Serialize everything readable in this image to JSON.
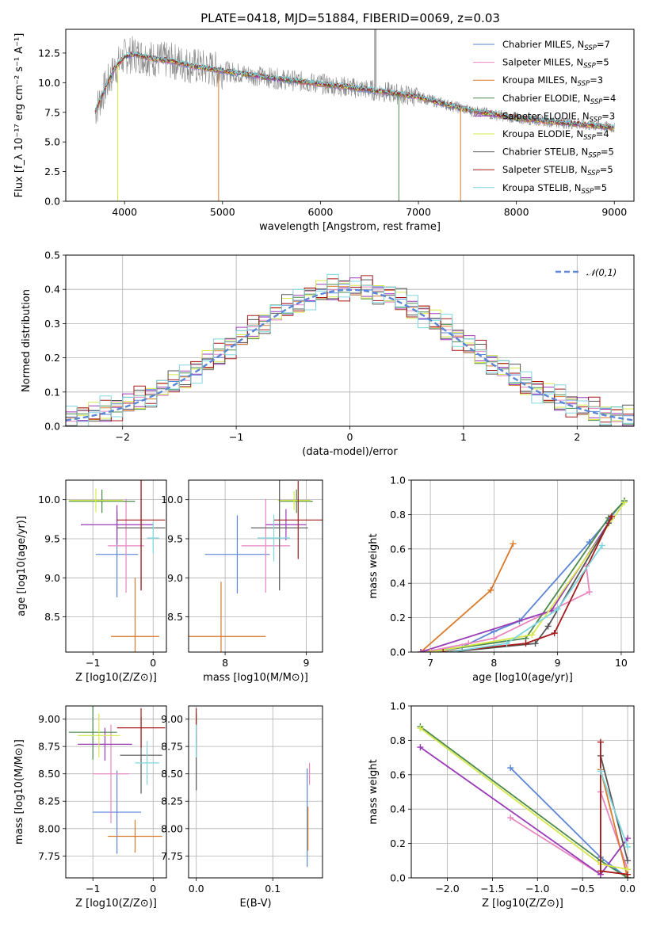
{
  "figure": {
    "title": "PLATE=0418, MJD=51884, FIBERID=0069, z=0.03"
  },
  "colors": {
    "c0": "#5b86d6",
    "c1": "#e886c0",
    "c2": "#d97a2a",
    "c3": "#4c8a4c",
    "c4": "#9a3ab8",
    "c5": "#d6e84c",
    "c6": "#555555",
    "c7": "#a51b1b",
    "c8": "#7fd6e0",
    "data": "#888888",
    "normal": "#5b86d6",
    "grid": "#b0b0b0"
  },
  "chart_data": [
    {
      "type": "line",
      "panel": "spectrum",
      "title": "PLATE=0418, MJD=51884, FIBERID=0069, z=0.03",
      "xlabel": "wavelength [Angstrom, rest frame]",
      "ylabel": "Flux [f_λ 10⁻¹⁷ erg cm⁻² s⁻¹ A⁻¹]",
      "xlim": [
        3400,
        9200
      ],
      "ylim": [
        0,
        14.5
      ],
      "xticks": [
        "4000",
        "5000",
        "6000",
        "7000",
        "8000",
        "9000"
      ],
      "yticks": [
        "0.0",
        "2.5",
        "5.0",
        "7.5",
        "10.0",
        "12.5"
      ],
      "grid": false,
      "legend_position": "top-right",
      "data_wavelength_range": [
        3700,
        9000
      ],
      "model_wavelength_range": [
        3700,
        9000
      ],
      "continuum": [
        {
          "x": 3700,
          "y": 7.6
        },
        {
          "x": 3800,
          "y": 9.5
        },
        {
          "x": 3900,
          "y": 11.2
        },
        {
          "x": 4000,
          "y": 12.2
        },
        {
          "x": 4100,
          "y": 12.4
        },
        {
          "x": 4300,
          "y": 12.0
        },
        {
          "x": 4500,
          "y": 11.8
        },
        {
          "x": 4700,
          "y": 11.4
        },
        {
          "x": 5000,
          "y": 11.0
        },
        {
          "x": 5500,
          "y": 10.4
        },
        {
          "x": 6000,
          "y": 9.9
        },
        {
          "x": 6500,
          "y": 9.4
        },
        {
          "x": 7000,
          "y": 8.8
        },
        {
          "x": 7500,
          "y": 7.7
        },
        {
          "x": 8000,
          "y": 7.0
        },
        {
          "x": 8500,
          "y": 6.6
        },
        {
          "x": 9000,
          "y": 6.2
        }
      ],
      "series": [
        {
          "name": "Chabrier MILES",
          "n_ssp": "7"
        },
        {
          "name": "Salpeter MILES",
          "n_ssp": "5"
        },
        {
          "name": "Kroupa MILES",
          "n_ssp": "3"
        },
        {
          "name": "Chabrier ELODIE",
          "n_ssp": "4"
        },
        {
          "name": "Salpeter ELODIE",
          "n_ssp": "3"
        },
        {
          "name": "Kroupa ELODIE",
          "n_ssp": "4"
        },
        {
          "name": "Chabrier STELIB",
          "n_ssp": "5"
        },
        {
          "name": "Salpeter STELIB",
          "n_ssp": "5"
        },
        {
          "name": "Kroupa STELIB",
          "n_ssp": "5"
        }
      ]
    },
    {
      "type": "line",
      "panel": "residuals",
      "xlabel": "(data-model)/error",
      "ylabel": "Normed distribution",
      "xlim": [
        -2.5,
        2.5
      ],
      "ylim": [
        0,
        0.5
      ],
      "xticks": [
        "−2",
        "−1",
        "0",
        "1",
        "2"
      ],
      "yticks": [
        "0.0",
        "0.1",
        "0.2",
        "0.3",
        "0.4",
        "0.5"
      ],
      "grid": true,
      "legend_position": "top-right",
      "reference_curve": {
        "name": "𝒩(0,1)",
        "mean": 0,
        "sigma": 1
      },
      "bin_width": 0.1,
      "histogram_jitter": [
        0.012,
        -0.018,
        0.022,
        -0.008,
        0.028,
        -0.025,
        0.006,
        0.035,
        -0.015,
        0.018
      ]
    },
    {
      "type": "scatter",
      "panel": "age-vs-Z",
      "xlabel": "Z [log10(Z/Z⊙)]",
      "ylabel": "age [log10(age/yr)]",
      "xlim": [
        -1.45,
        0.22
      ],
      "ylim": [
        8.05,
        10.25
      ],
      "xticks": [
        "−1",
        "0"
      ],
      "yticks": [
        "8.5",
        "9.0",
        "9.5",
        "10.0"
      ],
      "grid": true,
      "points": [
        {
          "series": 0,
          "x": -0.6,
          "y": 9.3,
          "xerr": 0.35,
          "yerr": 0.55
        },
        {
          "series": 1,
          "x": -0.45,
          "y": 9.41,
          "xerr": 0.3,
          "yerr": 0.6
        },
        {
          "series": 2,
          "x": -0.3,
          "y": 8.25,
          "xerr": 0.4,
          "yerr": 0.75
        },
        {
          "series": 3,
          "x": -0.85,
          "y": 9.98,
          "xerr": 0.55,
          "yerr": 0.15
        },
        {
          "series": 4,
          "x": -0.6,
          "y": 9.68,
          "xerr": 0.6,
          "yerr": 0.25
        },
        {
          "series": 5,
          "x": -0.95,
          "y": 9.99,
          "xerr": 0.45,
          "yerr": 0.15
        },
        {
          "series": 6,
          "x": -0.2,
          "y": 9.64,
          "xerr": 0.4,
          "yerr": 0.8
        },
        {
          "series": 7,
          "x": -0.2,
          "y": 9.74,
          "xerr": 0.4,
          "yerr": 0.9
        },
        {
          "series": 8,
          "x": 0.0,
          "y": 9.51,
          "xerr": 0.1,
          "yerr": 0.2
        }
      ]
    },
    {
      "type": "scatter",
      "panel": "age-vs-mass",
      "xlabel": "mass [log10(M/M⊙)]",
      "ylabel": "",
      "xlim": [
        7.55,
        9.2
      ],
      "ylim": [
        8.05,
        10.25
      ],
      "xticks": [
        "8",
        "9"
      ],
      "yticks": [
        "8.5",
        "9.0",
        "9.5",
        "10.0"
      ],
      "grid": true,
      "points": [
        {
          "series": 0,
          "x": 8.15,
          "y": 9.3,
          "xerr": 0.4,
          "yerr": 0.5
        },
        {
          "series": 1,
          "x": 8.5,
          "y": 9.41,
          "xerr": 0.3,
          "yerr": 0.6
        },
        {
          "series": 2,
          "x": 7.95,
          "y": 8.25,
          "xerr": 0.55,
          "yerr": 0.7
        },
        {
          "series": 3,
          "x": 8.88,
          "y": 9.98,
          "xerr": 0.2,
          "yerr": 0.15
        },
        {
          "series": 4,
          "x": 8.75,
          "y": 9.68,
          "xerr": 0.25,
          "yerr": 0.2
        },
        {
          "series": 5,
          "x": 8.85,
          "y": 9.99,
          "xerr": 0.2,
          "yerr": 0.12
        },
        {
          "series": 6,
          "x": 8.67,
          "y": 9.64,
          "xerr": 0.35,
          "yerr": 0.8
        },
        {
          "series": 7,
          "x": 8.9,
          "y": 9.74,
          "xerr": 0.3,
          "yerr": 0.5
        },
        {
          "series": 8,
          "x": 8.6,
          "y": 9.51,
          "xerr": 0.2,
          "yerr": 0.3
        }
      ]
    },
    {
      "type": "line",
      "panel": "mass-weight-vs-age",
      "xlabel": "age [log10(age/yr)]",
      "ylabel": "mass weight",
      "xlim": [
        6.7,
        10.2
      ],
      "ylim": [
        0,
        1.0
      ],
      "xticks": [
        "7",
        "8",
        "9",
        "10"
      ],
      "yticks": [
        "0.0",
        "0.2",
        "0.4",
        "0.6",
        "0.8",
        "1.0"
      ],
      "grid": true,
      "series": [
        {
          "series": 0,
          "points": [
            [
              6.9,
              0.0
            ],
            [
              7.5,
              0.03
            ],
            [
              8.0,
              0.12
            ],
            [
              8.4,
              0.18
            ],
            [
              9.5,
              0.64
            ],
            [
              10.05,
              0.88
            ]
          ]
        },
        {
          "series": 1,
          "points": [
            [
              6.9,
              0.0
            ],
            [
              7.6,
              0.05
            ],
            [
              8.0,
              0.08
            ],
            [
              9.5,
              0.35
            ],
            [
              9.45,
              0.5
            ]
          ]
        },
        {
          "series": 2,
          "points": [
            [
              6.85,
              0.0
            ],
            [
              7.95,
              0.36
            ],
            [
              8.3,
              0.63
            ]
          ]
        },
        {
          "series": 3,
          "points": [
            [
              7.0,
              0.0
            ],
            [
              8.5,
              0.08
            ],
            [
              9.8,
              0.78
            ],
            [
              10.05,
              0.88
            ]
          ]
        },
        {
          "series": 4,
          "points": [
            [
              6.85,
              0.0
            ],
            [
              8.9,
              0.24
            ],
            [
              9.85,
              0.78
            ]
          ]
        },
        {
          "series": 5,
          "points": [
            [
              7.0,
              0.0
            ],
            [
              8.6,
              0.1
            ],
            [
              10.05,
              0.87
            ]
          ]
        },
        {
          "series": 6,
          "points": [
            [
              7.3,
              0.0
            ],
            [
              8.65,
              0.05
            ],
            [
              8.85,
              0.15
            ],
            [
              9.8,
              0.75
            ]
          ]
        },
        {
          "series": 7,
          "points": [
            [
              7.2,
              0.0
            ],
            [
              8.5,
              0.05
            ],
            [
              8.95,
              0.11
            ],
            [
              9.85,
              0.79
            ]
          ]
        },
        {
          "series": 8,
          "points": [
            [
              7.3,
              0.0
            ],
            [
              8.2,
              0.05
            ],
            [
              9.0,
              0.25
            ],
            [
              9.7,
              0.62
            ]
          ]
        }
      ]
    },
    {
      "type": "scatter",
      "panel": "mass-vs-Z",
      "xlabel": "Z [log10(Z/Z⊙)]",
      "ylabel": "mass [log10(M/M⊙)]",
      "xlim": [
        -1.45,
        0.22
      ],
      "ylim": [
        7.55,
        9.12
      ],
      "xticks": [
        "−1",
        "0"
      ],
      "yticks": [
        "7.75",
        "8.00",
        "8.25",
        "8.50",
        "8.75",
        "9.00"
      ],
      "grid": true,
      "points": [
        {
          "series": 0,
          "x": -0.6,
          "y": 8.15,
          "xerr": 0.4,
          "yerr": 0.38
        },
        {
          "series": 1,
          "x": -0.7,
          "y": 8.5,
          "xerr": 0.3,
          "yerr": 0.45
        },
        {
          "series": 2,
          "x": -0.3,
          "y": 7.93,
          "xerr": 0.45,
          "yerr": 0.15
        },
        {
          "series": 3,
          "x": -1.0,
          "y": 8.88,
          "xerr": 0.4,
          "yerr": 0.25
        },
        {
          "series": 4,
          "x": -0.8,
          "y": 8.77,
          "xerr": 0.45,
          "yerr": 0.15
        },
        {
          "series": 5,
          "x": -0.9,
          "y": 8.85,
          "xerr": 0.35,
          "yerr": 0.2
        },
        {
          "series": 6,
          "x": -0.2,
          "y": 8.67,
          "xerr": 0.35,
          "yerr": 0.35
        },
        {
          "series": 7,
          "x": -0.2,
          "y": 8.92,
          "xerr": 0.4,
          "yerr": 0.18
        },
        {
          "series": 8,
          "x": -0.1,
          "y": 8.6,
          "xerr": 0.2,
          "yerr": 0.2
        }
      ]
    },
    {
      "type": "scatter",
      "panel": "mass-vs-EBV",
      "xlabel": "E(B-V)",
      "ylabel": "",
      "xlim": [
        -0.01,
        0.165
      ],
      "ylim": [
        7.55,
        9.12
      ],
      "xticks": [
        "0.0",
        "0.1"
      ],
      "yticks": [
        "7.75",
        "8.00",
        "8.25",
        "8.50",
        "8.75",
        "9.00"
      ],
      "grid": true,
      "points": [
        {
          "series": 0,
          "x": 0.145,
          "y": 8.1,
          "xerr": 0.0,
          "yerr": 0.45
        },
        {
          "series": 1,
          "x": 0.148,
          "y": 8.5,
          "xerr": 0.0,
          "yerr": 0.1
        },
        {
          "series": 2,
          "x": 0.146,
          "y": 8.0,
          "xerr": 0.0,
          "yerr": 0.2
        },
        {
          "series": 3,
          "x": 0.0,
          "y": 8.9,
          "xerr": 0.0,
          "yerr": 0.15
        },
        {
          "series": 4,
          "x": 0.0,
          "y": 8.77,
          "xerr": 0.0,
          "yerr": 0.1
        },
        {
          "series": 5,
          "x": 0.0,
          "y": 8.85,
          "xerr": 0.0,
          "yerr": 0.1
        },
        {
          "series": 6,
          "x": 0.0,
          "y": 8.6,
          "xerr": 0.0,
          "yerr": 0.25
        },
        {
          "series": 7,
          "x": 0.0,
          "y": 8.95,
          "xerr": 0.0,
          "yerr": 0.15
        },
        {
          "series": 8,
          "x": 0.0,
          "y": 8.8,
          "xerr": 0.0,
          "yerr": 0.15
        }
      ]
    },
    {
      "type": "line",
      "panel": "mass-weight-vs-Z",
      "xlabel": "Z [log10(Z/Z⊙)]",
      "ylabel": "mass weight",
      "xlim": [
        -2.4,
        0.07
      ],
      "ylim": [
        0,
        1.0
      ],
      "xticks": [
        "−2.0",
        "−1.5",
        "−1.0",
        "−0.5",
        "0.0"
      ],
      "yticks": [
        "0.0",
        "0.2",
        "0.4",
        "0.6",
        "0.8",
        "1.0"
      ],
      "grid": true,
      "series": [
        {
          "series": 0,
          "points": [
            [
              -1.3,
              0.64
            ],
            [
              -0.3,
              0.12
            ],
            [
              0.0,
              0.0
            ]
          ]
        },
        {
          "series": 1,
          "points": [
            [
              -1.3,
              0.35
            ],
            [
              -0.3,
              0.02
            ],
            [
              -0.3,
              0.5
            ],
            [
              0.0,
              0.05
            ]
          ]
        },
        {
          "series": 2,
          "points": [
            [
              -0.3,
              0.63
            ],
            [
              0.0,
              0.0
            ]
          ]
        },
        {
          "series": 3,
          "points": [
            [
              -2.3,
              0.88
            ],
            [
              -0.3,
              0.1
            ],
            [
              0.0,
              0.0
            ]
          ]
        },
        {
          "series": 4,
          "points": [
            [
              -2.3,
              0.76
            ],
            [
              -0.3,
              0.02
            ],
            [
              0.0,
              0.23
            ]
          ]
        },
        {
          "series": 5,
          "points": [
            [
              -2.3,
              0.87
            ],
            [
              -0.3,
              0.08
            ],
            [
              0.0,
              0.05
            ]
          ]
        },
        {
          "series": 6,
          "points": [
            [
              -0.3,
              0.71
            ],
            [
              0.0,
              0.1
            ]
          ]
        },
        {
          "series": 7,
          "points": [
            [
              -0.3,
              0.79
            ],
            [
              -0.3,
              0.04
            ],
            [
              0.0,
              0.02
            ]
          ]
        },
        {
          "series": 8,
          "points": [
            [
              -0.3,
              0.62
            ],
            [
              0.0,
              0.18
            ]
          ]
        }
      ]
    }
  ]
}
